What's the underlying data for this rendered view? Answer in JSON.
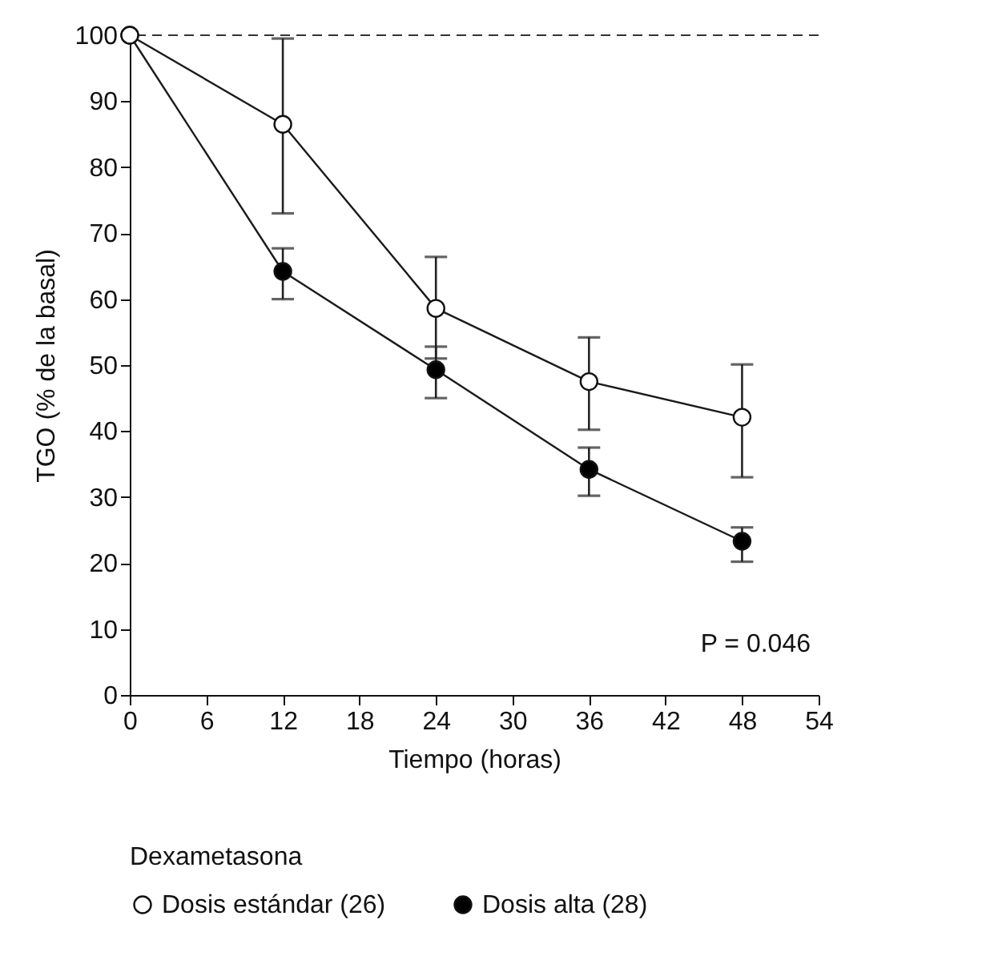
{
  "chart_data": {
    "type": "line",
    "xlabel": "Tiempo (horas)",
    "ylabel": "TGO (% de la basal)",
    "legend_title": "Dexametasona",
    "x": [
      0,
      12,
      24,
      36,
      48
    ],
    "series": [
      {
        "name": "Dosis estándar (26)",
        "color": "#ffffff",
        "values": [
          100,
          86.5,
          58.6,
          47.5,
          42.1
        ],
        "errors": [
          null,
          [
            73,
            99.5
          ],
          [
            51,
            66.4
          ],
          [
            40.2,
            54.2
          ],
          [
            33,
            50.1
          ]
        ]
      },
      {
        "name": "Dosis alta (28)",
        "color": "#000000",
        "values": [
          100,
          64.2,
          49.3,
          34.2,
          23.3
        ],
        "errors": [
          null,
          [
            60,
            67.7
          ],
          [
            45,
            52.8
          ],
          [
            30.2,
            37.5
          ],
          [
            20.2,
            25.4
          ]
        ]
      }
    ],
    "xlim": [
      0,
      54
    ],
    "xticks": [
      0,
      6,
      12,
      18,
      24,
      30,
      36,
      42,
      48,
      54
    ],
    "ylim": [
      0,
      100
    ],
    "yticks": [
      0,
      10,
      20,
      30,
      40,
      50,
      60,
      70,
      80,
      90,
      100
    ],
    "ref_lines": [
      {
        "axis": "y",
        "value": 100,
        "line_style": "dashed"
      }
    ],
    "annotations": [
      "P = 0.046"
    ],
    "marker": "circle",
    "line_style": "solid",
    "grid": false,
    "legend": "bottom"
  }
}
